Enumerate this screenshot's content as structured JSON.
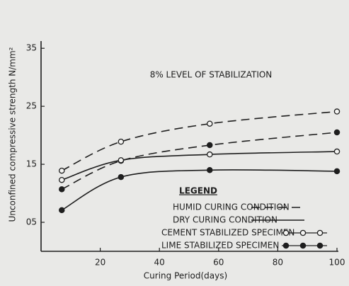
{
  "chart_data": {
    "type": "line",
    "annotation": "8% LEVEL OF STABILIZATION",
    "xlabel": "Curing Period(days)",
    "ylabel": "Unconfined compressive strength N/mm²",
    "x": [
      7,
      27,
      57,
      100
    ],
    "xlim": [
      0,
      100
    ],
    "xticks": [
      20,
      40,
      60,
      80,
      100
    ],
    "ylim": [
      0,
      36
    ],
    "yticks": [
      {
        "value": 5,
        "label": "05"
      },
      15,
      25,
      35
    ],
    "legend": {
      "title": "LEGEND",
      "curing": [
        {
          "label": "HUMID CURING CONDITION",
          "dash": "dashed"
        },
        {
          "label": "DRY CURING CONDITION",
          "dash": "solid"
        }
      ],
      "specimen": [
        {
          "label": "CEMENT STABILIZED SPECIMEN",
          "marker": "open"
        },
        {
          "label": "LIME STABILIZED SPECIMEN",
          "marker": "filled"
        }
      ]
    },
    "color": "#1e1e1e",
    "series": [
      {
        "curing": 0,
        "specimen": 0,
        "values": [
          13.9,
          18.9,
          22.0,
          24.1
        ]
      },
      {
        "curing": 0,
        "specimen": 1,
        "values": [
          10.7,
          15.6,
          18.3,
          20.5
        ]
      },
      {
        "curing": 1,
        "specimen": 0,
        "values": [
          12.3,
          15.7,
          16.7,
          17.2
        ]
      },
      {
        "curing": 1,
        "specimen": 1,
        "values": [
          7.1,
          12.8,
          14.0,
          13.8
        ]
      }
    ]
  }
}
